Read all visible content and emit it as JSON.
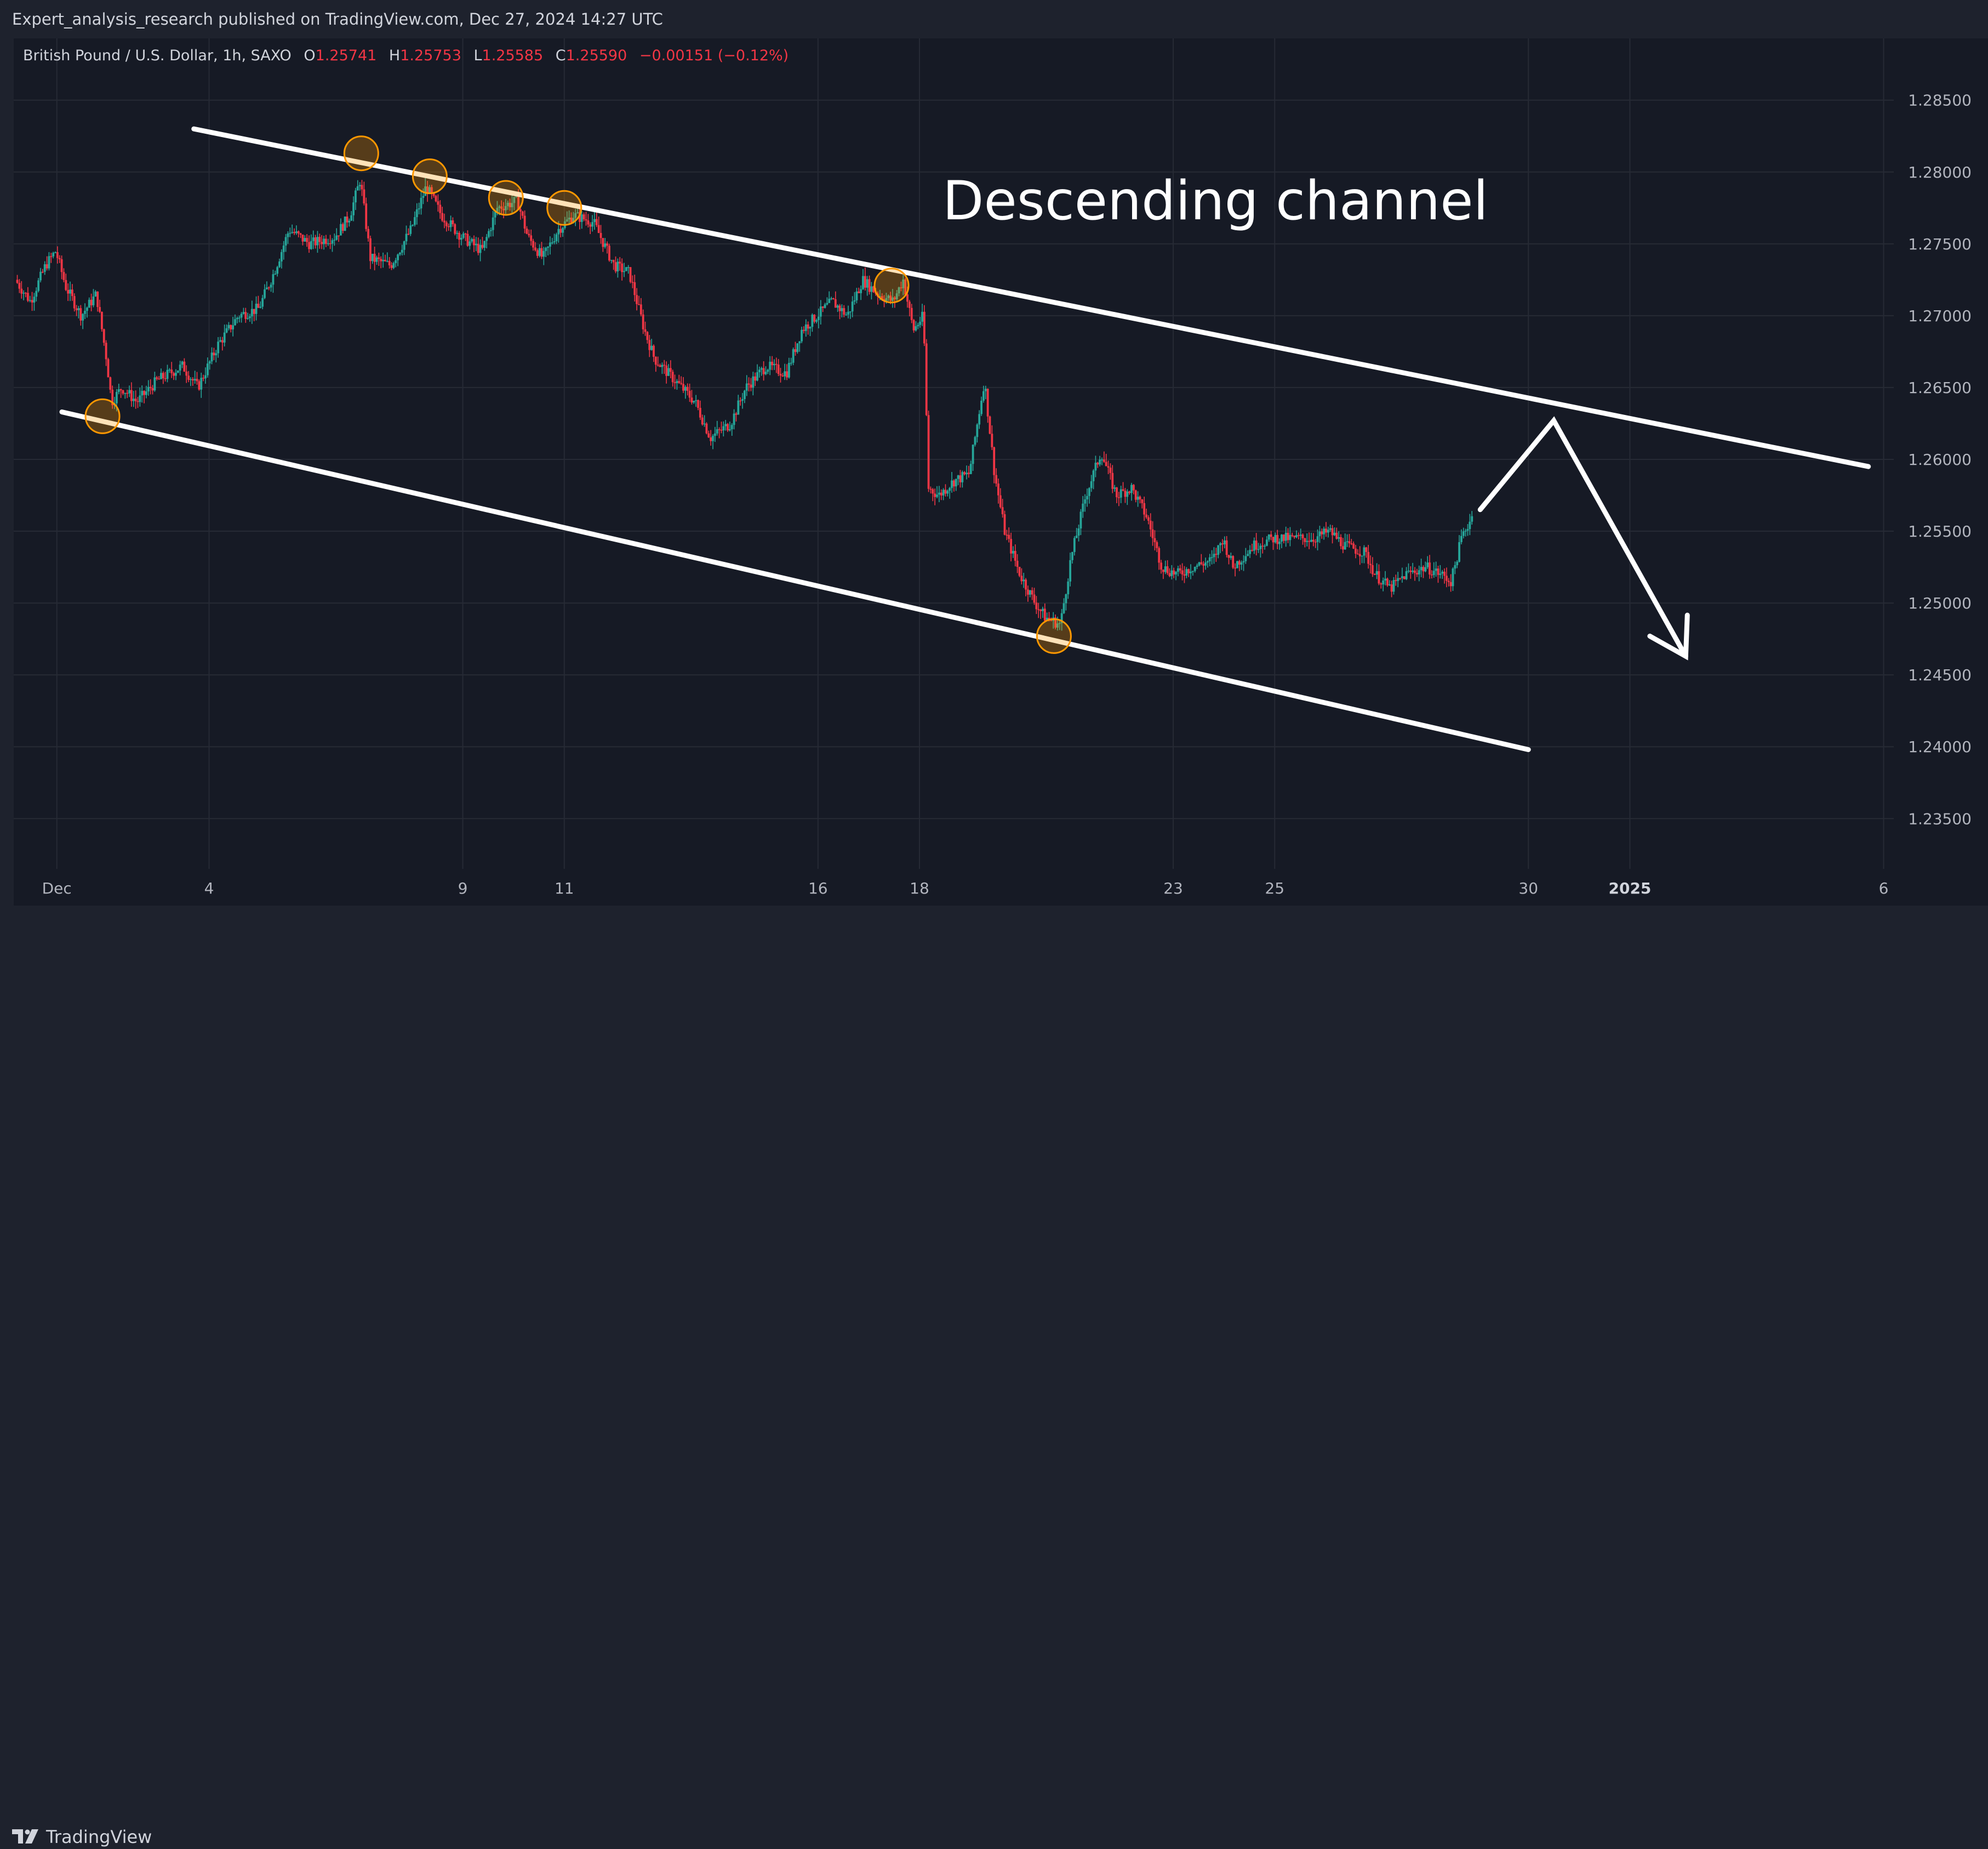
{
  "header": {
    "published_text": "Expert_analysis_research published on TradingView.com, Dec 27, 2024 14:27 UTC"
  },
  "legend": {
    "symbol": "British Pound / U.S. Dollar, 1h, SAXO",
    "open_label": "O",
    "open": "1.25741",
    "high_label": "H",
    "high": "1.25753",
    "low_label": "L",
    "low": "1.25585",
    "close_label": "C",
    "close": "1.25590",
    "change": "−0.00151 (−0.12%)"
  },
  "footer": {
    "brand": "TradingView"
  },
  "colors": {
    "background": "#161a25",
    "grid": "#262a35",
    "up": "#26a69a",
    "down": "#f23645",
    "axis_text": "#b2b5be",
    "annotation": "#ffffff",
    "marker": "#ff9800"
  },
  "chart_data": {
    "type": "candlestick",
    "title": "",
    "annotation_text": "Descending channel",
    "y_axis": {
      "ticks": [
        "1.28500",
        "1.28000",
        "1.27500",
        "1.27000",
        "1.26500",
        "1.26000",
        "1.25500",
        "1.25000",
        "1.24500",
        "1.24000",
        "1.23500"
      ],
      "range": [
        1.2315,
        1.2893
      ]
    },
    "x_axis": {
      "ticks": [
        {
          "label": "Dec",
          "day": 1
        },
        {
          "label": "4",
          "day": 4
        },
        {
          "label": "9",
          "day": 9
        },
        {
          "label": "11",
          "day": 11
        },
        {
          "label": "16",
          "day": 16
        },
        {
          "label": "18",
          "day": 18
        },
        {
          "label": "23",
          "day": 23
        },
        {
          "label": "25",
          "day": 25
        },
        {
          "label": "30",
          "day": 30
        },
        {
          "label": "2025",
          "day": 32
        },
        {
          "label": "6",
          "day": 37
        }
      ],
      "range_days": [
        0.15,
        37.2
      ]
    },
    "price_path": [
      [
        0.2,
        1.2725
      ],
      [
        0.5,
        1.271
      ],
      [
        0.8,
        1.2735
      ],
      [
        1.0,
        1.2745
      ],
      [
        1.2,
        1.272
      ],
      [
        1.5,
        1.27
      ],
      [
        1.8,
        1.2715
      ],
      [
        2.0,
        1.267
      ],
      [
        2.1,
        1.264
      ],
      [
        2.3,
        1.265
      ],
      [
        2.6,
        1.264
      ],
      [
        3.0,
        1.2655
      ],
      [
        3.5,
        1.2665
      ],
      [
        3.8,
        1.265
      ],
      [
        4.2,
        1.268
      ],
      [
        4.6,
        1.27
      ],
      [
        5.0,
        1.2705
      ],
      [
        5.3,
        1.273
      ],
      [
        5.6,
        1.276
      ],
      [
        6.0,
        1.275
      ],
      [
        6.5,
        1.2755
      ],
      [
        6.8,
        1.277
      ],
      [
        7.0,
        1.2795
      ],
      [
        7.2,
        1.274
      ],
      [
        7.6,
        1.2735
      ],
      [
        8.0,
        1.276
      ],
      [
        8.3,
        1.279
      ],
      [
        8.6,
        1.277
      ],
      [
        9.0,
        1.2755
      ],
      [
        9.4,
        1.2745
      ],
      [
        9.7,
        1.2775
      ],
      [
        10.1,
        1.278
      ],
      [
        10.3,
        1.2755
      ],
      [
        10.6,
        1.274
      ],
      [
        10.9,
        1.276
      ],
      [
        11.2,
        1.277
      ],
      [
        11.6,
        1.2765
      ],
      [
        12.0,
        1.2735
      ],
      [
        12.3,
        1.273
      ],
      [
        12.6,
        1.269
      ],
      [
        12.8,
        1.267
      ],
      [
        13.2,
        1.2655
      ],
      [
        13.6,
        1.264
      ],
      [
        13.9,
        1.2615
      ],
      [
        14.3,
        1.2625
      ],
      [
        14.6,
        1.265
      ],
      [
        15.0,
        1.2665
      ],
      [
        15.4,
        1.266
      ],
      [
        15.7,
        1.269
      ],
      [
        16.0,
        1.27
      ],
      [
        16.3,
        1.271
      ],
      [
        16.6,
        1.27
      ],
      [
        16.9,
        1.2725
      ],
      [
        17.2,
        1.2715
      ],
      [
        17.5,
        1.271
      ],
      [
        17.7,
        1.2725
      ],
      [
        17.9,
        1.269
      ],
      [
        18.1,
        1.27
      ],
      [
        18.2,
        1.258
      ],
      [
        18.4,
        1.2575
      ],
      [
        18.7,
        1.2585
      ],
      [
        19.0,
        1.259
      ],
      [
        19.3,
        1.2655
      ],
      [
        19.5,
        1.259
      ],
      [
        19.7,
        1.255
      ],
      [
        20.0,
        1.252
      ],
      [
        20.3,
        1.25
      ],
      [
        20.5,
        1.249
      ],
      [
        20.8,
        1.2485
      ],
      [
        21.0,
        1.253
      ],
      [
        21.3,
        1.2575
      ],
      [
        21.6,
        1.2605
      ],
      [
        21.9,
        1.2575
      ],
      [
        22.2,
        1.258
      ],
      [
        22.5,
        1.256
      ],
      [
        22.8,
        1.2525
      ],
      [
        23.1,
        1.252
      ],
      [
        23.4,
        1.2525
      ],
      [
        23.8,
        1.253
      ],
      [
        24.0,
        1.2545
      ],
      [
        24.2,
        1.2525
      ],
      [
        24.6,
        1.254
      ],
      [
        25.0,
        1.2545
      ],
      [
        25.4,
        1.2545
      ],
      [
        25.8,
        1.2545
      ],
      [
        26.1,
        1.255
      ],
      [
        26.4,
        1.254
      ],
      [
        26.8,
        1.2535
      ],
      [
        27.0,
        1.252
      ],
      [
        27.3,
        1.251
      ],
      [
        27.6,
        1.252
      ],
      [
        28.0,
        1.2525
      ],
      [
        28.3,
        1.252
      ],
      [
        28.5,
        1.2515
      ],
      [
        28.7,
        1.2545
      ],
      [
        28.9,
        1.256
      ]
    ],
    "channel_upper": [
      [
        3.7,
        1.283
      ],
      [
        36.7,
        1.2595
      ]
    ],
    "channel_lower": [
      [
        1.1,
        1.2633
      ],
      [
        30.0,
        1.2398
      ]
    ],
    "projection": [
      [
        29.05,
        1.2565
      ],
      [
        30.5,
        1.2627
      ],
      [
        33.1,
        1.2463
      ]
    ],
    "touch_points": [
      [
        7.0,
        1.2813
      ],
      [
        8.35,
        1.2797
      ],
      [
        9.85,
        1.2782
      ],
      [
        11.0,
        1.2775
      ],
      [
        17.45,
        1.2721
      ],
      [
        1.9,
        1.263
      ],
      [
        20.65,
        1.2477
      ]
    ]
  }
}
